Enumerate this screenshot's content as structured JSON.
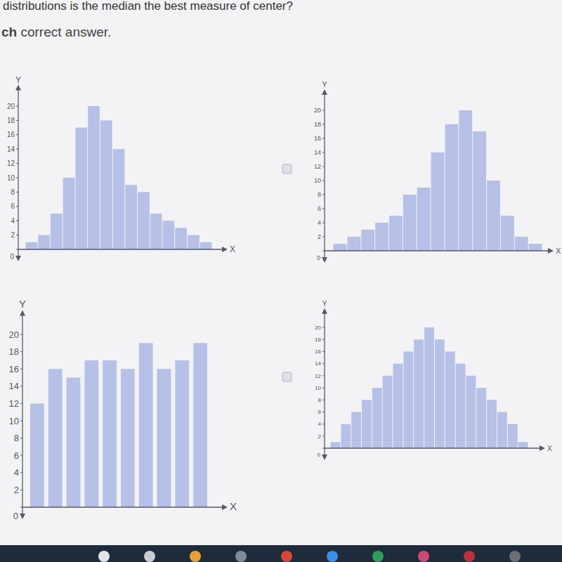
{
  "header": {
    "question": "distributions is the median the best measure of center?",
    "instruction_bold": "ch",
    "instruction": " correct answer."
  },
  "chart_data": [
    {
      "type": "histogram",
      "bins": [
        0,
        1,
        2,
        3,
        4,
        5,
        6,
        7,
        8,
        9,
        10,
        11,
        12,
        13,
        14,
        15
      ],
      "values": [
        1,
        2,
        5,
        10,
        17,
        20,
        18,
        14,
        9,
        8,
        5,
        4,
        3,
        2,
        1
      ],
      "color": "#b7c0e6",
      "xlim": [
        0,
        15
      ],
      "ylim": [
        0,
        22
      ],
      "yticks": [
        0,
        2,
        4,
        6,
        8,
        10,
        12,
        14,
        16,
        18,
        20
      ],
      "tick_labels": "y",
      "x_label": "X",
      "y_label": "Y"
    },
    {
      "type": "histogram",
      "bins": [
        0,
        1,
        2,
        3,
        4,
        5,
        6,
        7,
        8,
        9,
        10,
        11,
        12,
        13,
        14,
        15
      ],
      "values": [
        1,
        2,
        3,
        4,
        5,
        8,
        9,
        14,
        18,
        20,
        17,
        10,
        5,
        2,
        1
      ],
      "color": "#b7c0e6",
      "xlim": [
        0,
        15
      ],
      "ylim": [
        0,
        22
      ],
      "yticks": [
        0,
        2,
        4,
        6,
        8,
        10,
        12,
        14,
        16,
        18,
        20
      ],
      "tick_labels": "y",
      "x_label": "X",
      "y_label": "Y"
    },
    {
      "type": "histogram",
      "bins": [
        0,
        1,
        2,
        3,
        4,
        5,
        6,
        7,
        8,
        9,
        10
      ],
      "values": [
        12,
        16,
        15,
        17,
        17,
        16,
        19,
        16,
        17,
        19
      ],
      "color": "#b7c0e6",
      "xlim": [
        0,
        10
      ],
      "ylim": [
        0,
        22
      ],
      "yticks": [
        0,
        2,
        4,
        6,
        8,
        10,
        12,
        14,
        16,
        18,
        20
      ],
      "tick_labels": "y",
      "x_label": "X",
      "y_label": "Y"
    },
    {
      "type": "histogram",
      "bins": [
        0,
        1,
        2,
        3,
        4,
        5,
        6,
        7,
        8,
        9,
        10,
        11,
        12,
        13,
        14,
        15,
        16,
        17,
        18,
        19
      ],
      "values": [
        1,
        4,
        6,
        8,
        10,
        12,
        14,
        16,
        18,
        20,
        18,
        16,
        14,
        12,
        10,
        8,
        6,
        4,
        1
      ],
      "color": "#b7c0e6",
      "xlim": [
        0,
        19
      ],
      "ylim": [
        0,
        22
      ],
      "yticks": [
        0,
        2,
        4,
        6,
        8,
        10,
        12,
        14,
        16,
        18,
        20
      ],
      "tick_labels": "y",
      "x_label": "X",
      "y_label": "Y"
    }
  ]
}
